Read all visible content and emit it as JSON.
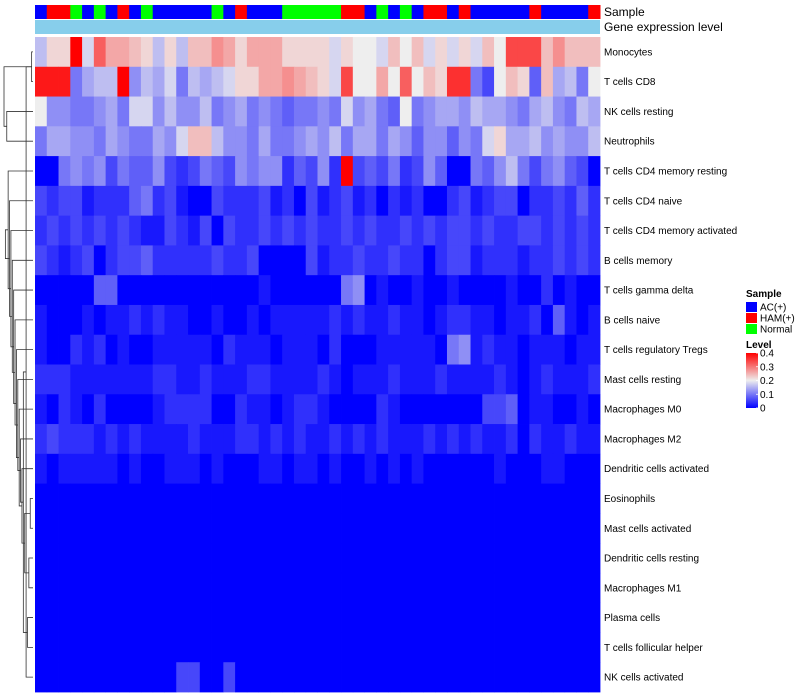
{
  "chart_data": {
    "type": "heatmap",
    "title": "",
    "annotation_rows": [
      "Sample",
      "Gene expression level"
    ],
    "rows": [
      "Monocytes",
      "T cells CD8",
      "NK cells resting",
      "Neutrophils",
      "T cells CD4 memory resting",
      "T cells CD4 naive",
      "T cells CD4 memory activated",
      "B cells memory",
      "T cells gamma delta",
      "B cells naive",
      "T cells regulatory  Tregs",
      "Mast cells resting",
      "Macrophages M0",
      "Macrophages M2",
      "Dendritic cells activated",
      "Eosinophils",
      "Mast cells activated",
      "Dendritic cells resting",
      "Macrophages M1",
      "Plasma cells",
      "T cells follicular helper",
      "NK cells activated"
    ],
    "sample_groups": [
      "AC",
      "HAM",
      "HAM",
      "Normal",
      "AC",
      "Normal",
      "AC",
      "HAM",
      "AC",
      "Normal",
      "AC",
      "AC",
      "AC",
      "AC",
      "AC",
      "Normal",
      "AC",
      "HAM",
      "AC",
      "AC",
      "AC",
      "Normal",
      "Normal",
      "Normal",
      "Normal",
      "Normal",
      "HAM",
      "HAM",
      "AC",
      "Normal",
      "AC",
      "Normal",
      "AC",
      "HAM",
      "HAM",
      "AC",
      "HAM",
      "AC",
      "AC",
      "AC",
      "AC",
      "AC",
      "HAM",
      "AC",
      "AC",
      "AC",
      "AC",
      "HAM"
    ],
    "values": [
      [
        0.16,
        0.22,
        0.22,
        0.4,
        0.18,
        0.32,
        0.26,
        0.26,
        0.24,
        0.22,
        0.16,
        0.22,
        0.16,
        0.24,
        0.24,
        0.28,
        0.26,
        0.22,
        0.26,
        0.26,
        0.26,
        0.22,
        0.22,
        0.22,
        0.22,
        0.18,
        0.22,
        0.2,
        0.2,
        0.18,
        0.24,
        0.2,
        0.24,
        0.18,
        0.22,
        0.18,
        0.22,
        0.18,
        0.24,
        0.2,
        0.34,
        0.34,
        0.34,
        0.24,
        0.28,
        0.24,
        0.24,
        0.24
      ],
      [
        0.38,
        0.38,
        0.38,
        0.1,
        0.14,
        0.16,
        0.16,
        0.4,
        0.12,
        0.16,
        0.14,
        0.18,
        0.1,
        0.16,
        0.14,
        0.16,
        0.18,
        0.22,
        0.22,
        0.26,
        0.26,
        0.28,
        0.26,
        0.24,
        0.22,
        0.18,
        0.34,
        0.2,
        0.2,
        0.26,
        0.2,
        0.32,
        0.2,
        0.24,
        0.22,
        0.36,
        0.36,
        0.1,
        0.06,
        0.2,
        0.24,
        0.22,
        0.08,
        0.24,
        0.14,
        0.16,
        0.1,
        0.2
      ],
      [
        0.2,
        0.12,
        0.12,
        0.1,
        0.1,
        0.12,
        0.14,
        0.1,
        0.18,
        0.18,
        0.12,
        0.16,
        0.12,
        0.12,
        0.16,
        0.1,
        0.12,
        0.14,
        0.1,
        0.12,
        0.1,
        0.08,
        0.1,
        0.1,
        0.12,
        0.1,
        0.18,
        0.12,
        0.14,
        0.1,
        0.08,
        0.2,
        0.1,
        0.12,
        0.14,
        0.14,
        0.12,
        0.16,
        0.14,
        0.14,
        0.12,
        0.1,
        0.14,
        0.16,
        0.12,
        0.1,
        0.16,
        0.14
      ],
      [
        0.1,
        0.14,
        0.14,
        0.12,
        0.12,
        0.1,
        0.14,
        0.12,
        0.1,
        0.1,
        0.14,
        0.12,
        0.18,
        0.24,
        0.24,
        0.16,
        0.12,
        0.12,
        0.1,
        0.14,
        0.1,
        0.1,
        0.12,
        0.14,
        0.12,
        0.16,
        0.1,
        0.14,
        0.14,
        0.1,
        0.14,
        0.12,
        0.08,
        0.12,
        0.12,
        0.08,
        0.12,
        0.1,
        0.18,
        0.22,
        0.14,
        0.14,
        0.16,
        0.12,
        0.14,
        0.12,
        0.12,
        0.16
      ],
      [
        0.0,
        0.0,
        0.1,
        0.12,
        0.1,
        0.12,
        0.06,
        0.1,
        0.08,
        0.08,
        0.12,
        0.06,
        0.04,
        0.06,
        0.1,
        0.08,
        0.06,
        0.12,
        0.1,
        0.12,
        0.12,
        0.04,
        0.08,
        0.06,
        0.12,
        0.04,
        0.4,
        0.06,
        0.08,
        0.06,
        0.1,
        0.04,
        0.06,
        0.12,
        0.08,
        0.0,
        0.0,
        0.1,
        0.08,
        0.12,
        0.16,
        0.1,
        0.06,
        0.1,
        0.12,
        0.08,
        0.06,
        0.0
      ],
      [
        0.06,
        0.04,
        0.06,
        0.06,
        0.02,
        0.04,
        0.04,
        0.04,
        0.08,
        0.1,
        0.04,
        0.06,
        0.02,
        0.0,
        0.0,
        0.06,
        0.04,
        0.04,
        0.04,
        0.06,
        0.02,
        0.04,
        0.0,
        0.06,
        0.02,
        0.04,
        0.06,
        0.02,
        0.04,
        0.0,
        0.04,
        0.02,
        0.04,
        0.0,
        0.0,
        0.04,
        0.06,
        0.02,
        0.04,
        0.06,
        0.06,
        0.0,
        0.04,
        0.04,
        0.06,
        0.04,
        0.08,
        0.04
      ],
      [
        0.04,
        0.06,
        0.04,
        0.06,
        0.04,
        0.06,
        0.04,
        0.06,
        0.04,
        0.02,
        0.02,
        0.06,
        0.04,
        0.02,
        0.06,
        0.0,
        0.06,
        0.04,
        0.04,
        0.06,
        0.04,
        0.06,
        0.04,
        0.06,
        0.04,
        0.04,
        0.06,
        0.04,
        0.06,
        0.04,
        0.04,
        0.06,
        0.04,
        0.06,
        0.04,
        0.06,
        0.06,
        0.04,
        0.06,
        0.04,
        0.04,
        0.06,
        0.06,
        0.04,
        0.06,
        0.04,
        0.06,
        0.04
      ],
      [
        0.06,
        0.04,
        0.02,
        0.04,
        0.06,
        0.0,
        0.04,
        0.06,
        0.06,
        0.08,
        0.04,
        0.04,
        0.04,
        0.04,
        0.04,
        0.06,
        0.04,
        0.04,
        0.06,
        0.0,
        0.0,
        0.0,
        0.0,
        0.06,
        0.02,
        0.04,
        0.04,
        0.06,
        0.04,
        0.04,
        0.06,
        0.04,
        0.04,
        0.0,
        0.04,
        0.06,
        0.06,
        0.02,
        0.04,
        0.04,
        0.04,
        0.02,
        0.04,
        0.04,
        0.06,
        0.04,
        0.06,
        0.04
      ],
      [
        0.0,
        0.0,
        0.0,
        0.0,
        0.0,
        0.08,
        0.08,
        0.0,
        0.0,
        0.0,
        0.0,
        0.0,
        0.0,
        0.0,
        0.0,
        0.0,
        0.0,
        0.0,
        0.0,
        0.02,
        0.0,
        0.0,
        0.0,
        0.0,
        0.0,
        0.0,
        0.1,
        0.12,
        0.0,
        0.02,
        0.0,
        0.0,
        0.02,
        0.0,
        0.0,
        0.02,
        0.0,
        0.0,
        0.0,
        0.0,
        0.02,
        0.0,
        0.0,
        0.04,
        0.0,
        0.02,
        0.0,
        0.0
      ],
      [
        0.02,
        0.0,
        0.0,
        0.0,
        0.02,
        0.0,
        0.02,
        0.02,
        0.04,
        0.02,
        0.04,
        0.02,
        0.02,
        0.0,
        0.0,
        0.02,
        0.0,
        0.0,
        0.02,
        0.0,
        0.02,
        0.02,
        0.02,
        0.02,
        0.02,
        0.04,
        0.02,
        0.04,
        0.02,
        0.02,
        0.04,
        0.02,
        0.02,
        0.0,
        0.02,
        0.04,
        0.04,
        0.02,
        0.02,
        0.0,
        0.02,
        0.02,
        0.04,
        0.0,
        0.08,
        0.02,
        0.0,
        0.02
      ],
      [
        0.02,
        0.0,
        0.0,
        0.04,
        0.02,
        0.04,
        0.0,
        0.02,
        0.0,
        0.0,
        0.02,
        0.02,
        0.02,
        0.02,
        0.02,
        0.0,
        0.04,
        0.02,
        0.02,
        0.02,
        0.0,
        0.02,
        0.02,
        0.02,
        0.0,
        0.04,
        0.0,
        0.0,
        0.0,
        0.02,
        0.02,
        0.02,
        0.02,
        0.02,
        0.0,
        0.1,
        0.12,
        0.02,
        0.04,
        0.02,
        0.02,
        0.0,
        0.02,
        0.02,
        0.02,
        0.0,
        0.02,
        0.02
      ],
      [
        0.04,
        0.04,
        0.04,
        0.02,
        0.02,
        0.02,
        0.02,
        0.02,
        0.02,
        0.02,
        0.04,
        0.04,
        0.02,
        0.02,
        0.04,
        0.02,
        0.02,
        0.02,
        0.04,
        0.04,
        0.02,
        0.02,
        0.02,
        0.02,
        0.04,
        0.02,
        0.0,
        0.02,
        0.02,
        0.02,
        0.04,
        0.02,
        0.02,
        0.02,
        0.04,
        0.02,
        0.02,
        0.02,
        0.02,
        0.04,
        0.02,
        0.0,
        0.02,
        0.04,
        0.02,
        0.02,
        0.02,
        0.04
      ],
      [
        0.02,
        0.0,
        0.04,
        0.02,
        0.0,
        0.04,
        0.0,
        0.0,
        0.0,
        0.0,
        0.02,
        0.04,
        0.04,
        0.04,
        0.04,
        0.0,
        0.0,
        0.04,
        0.02,
        0.02,
        0.0,
        0.02,
        0.04,
        0.04,
        0.02,
        0.0,
        0.0,
        0.0,
        0.0,
        0.04,
        0.02,
        0.0,
        0.0,
        0.0,
        0.0,
        0.0,
        0.0,
        0.0,
        0.06,
        0.06,
        0.08,
        0.0,
        0.02,
        0.02,
        0.0,
        0.0,
        0.02,
        0.0
      ],
      [
        0.04,
        0.06,
        0.04,
        0.04,
        0.04,
        0.02,
        0.04,
        0.02,
        0.04,
        0.02,
        0.02,
        0.02,
        0.02,
        0.04,
        0.02,
        0.02,
        0.02,
        0.04,
        0.04,
        0.02,
        0.04,
        0.02,
        0.04,
        0.02,
        0.02,
        0.04,
        0.02,
        0.04,
        0.02,
        0.04,
        0.02,
        0.02,
        0.02,
        0.04,
        0.02,
        0.04,
        0.02,
        0.04,
        0.02,
        0.02,
        0.04,
        0.0,
        0.04,
        0.02,
        0.02,
        0.04,
        0.02,
        0.02
      ],
      [
        0.02,
        0.0,
        0.02,
        0.02,
        0.02,
        0.02,
        0.02,
        0.0,
        0.02,
        0.0,
        0.0,
        0.02,
        0.02,
        0.02,
        0.0,
        0.02,
        0.0,
        0.0,
        0.0,
        0.02,
        0.02,
        0.0,
        0.02,
        0.02,
        0.0,
        0.02,
        0.0,
        0.0,
        0.02,
        0.0,
        0.02,
        0.0,
        0.02,
        0.0,
        0.0,
        0.0,
        0.0,
        0.0,
        0.0,
        0.02,
        0.0,
        0.0,
        0.0,
        0.02,
        0.02,
        0.0,
        0.0,
        0.0
      ],
      [
        0,
        0,
        0,
        0,
        0,
        0,
        0,
        0,
        0,
        0,
        0,
        0,
        0,
        0,
        0,
        0,
        0,
        0,
        0,
        0,
        0,
        0,
        0,
        0,
        0,
        0,
        0,
        0,
        0,
        0,
        0,
        0,
        0,
        0,
        0,
        0,
        0,
        0,
        0,
        0,
        0,
        0,
        0,
        0,
        0,
        0,
        0,
        0
      ],
      [
        0,
        0,
        0,
        0,
        0,
        0,
        0,
        0,
        0,
        0,
        0,
        0,
        0,
        0,
        0,
        0,
        0,
        0,
        0,
        0,
        0,
        0,
        0,
        0,
        0,
        0,
        0,
        0,
        0,
        0,
        0,
        0,
        0,
        0,
        0,
        0,
        0,
        0,
        0,
        0,
        0,
        0,
        0,
        0,
        0,
        0,
        0,
        0
      ],
      [
        0,
        0,
        0,
        0,
        0,
        0,
        0,
        0,
        0,
        0,
        0,
        0,
        0,
        0,
        0,
        0,
        0,
        0,
        0,
        0,
        0,
        0,
        0,
        0,
        0,
        0,
        0,
        0,
        0,
        0,
        0,
        0,
        0,
        0,
        0,
        0,
        0,
        0,
        0,
        0,
        0,
        0,
        0,
        0,
        0,
        0,
        0,
        0
      ],
      [
        0,
        0,
        0,
        0,
        0,
        0,
        0,
        0,
        0,
        0,
        0,
        0,
        0,
        0,
        0,
        0,
        0,
        0,
        0,
        0,
        0,
        0,
        0,
        0,
        0,
        0,
        0,
        0,
        0,
        0,
        0,
        0,
        0,
        0,
        0,
        0,
        0,
        0,
        0,
        0,
        0,
        0,
        0,
        0,
        0,
        0,
        0,
        0
      ],
      [
        0,
        0,
        0,
        0,
        0,
        0,
        0,
        0,
        0,
        0,
        0,
        0,
        0,
        0,
        0,
        0,
        0,
        0,
        0,
        0,
        0,
        0,
        0,
        0,
        0,
        0,
        0,
        0,
        0,
        0,
        0,
        0,
        0,
        0,
        0,
        0,
        0,
        0,
        0,
        0,
        0,
        0,
        0,
        0,
        0,
        0,
        0,
        0
      ],
      [
        0,
        0,
        0,
        0,
        0,
        0,
        0,
        0,
        0,
        0,
        0,
        0,
        0,
        0,
        0,
        0,
        0,
        0,
        0,
        0,
        0,
        0,
        0,
        0,
        0,
        0,
        0,
        0,
        0,
        0,
        0,
        0,
        0,
        0,
        0,
        0,
        0,
        0,
        0,
        0,
        0,
        0,
        0,
        0,
        0,
        0,
        0,
        0
      ],
      [
        0,
        0,
        0,
        0,
        0,
        0,
        0,
        0,
        0,
        0,
        0,
        0,
        0.06,
        0.06,
        0,
        0,
        0.06,
        0,
        0,
        0,
        0,
        0,
        0,
        0,
        0,
        0,
        0,
        0,
        0,
        0,
        0,
        0,
        0,
        0,
        0,
        0,
        0,
        0,
        0,
        0,
        0,
        0,
        0,
        0,
        0,
        0,
        0,
        0
      ]
    ],
    "color_scale": {
      "min": 0,
      "mid": 0.2,
      "max": 0.4,
      "low_color": "#0000ff",
      "mid_color": "#eeeeee",
      "high_color": "#ff0000"
    },
    "annotation_colors": {
      "AC": "#0000ff",
      "HAM": "#ff0000",
      "Normal": "#00ff00",
      "gene_expression": "#87ceeb"
    },
    "legend_sample": {
      "title": "Sample",
      "entries": [
        {
          "key": "AC",
          "label": "AC(+)"
        },
        {
          "key": "HAM",
          "label": "HAM(+)"
        },
        {
          "key": "Normal",
          "label": "Normal"
        }
      ]
    },
    "legend_level": {
      "title": "Level",
      "ticks": [
        0.4,
        0.3,
        0.2,
        0.1,
        0
      ],
      "tick_labels": [
        "0.4",
        "0.3",
        "0.2",
        "0.1",
        "0"
      ]
    },
    "dendrogram_merges": [
      [
        0,
        1
      ],
      [
        15,
        16
      ],
      [
        17,
        18
      ],
      [
        19,
        20
      ],
      [
        21,
        22
      ],
      [
        23,
        24
      ],
      [
        25,
        26
      ],
      [
        14,
        27
      ],
      [
        13,
        28
      ],
      [
        12,
        29
      ],
      [
        11,
        30
      ],
      [
        10,
        31
      ],
      [
        9,
        32
      ],
      [
        8,
        33
      ],
      [
        7,
        34
      ],
      [
        6,
        35
      ],
      [
        5,
        36
      ],
      [
        4,
        37
      ],
      [
        2,
        3
      ],
      [
        39,
        38
      ],
      [
        40,
        22
      ]
    ]
  }
}
